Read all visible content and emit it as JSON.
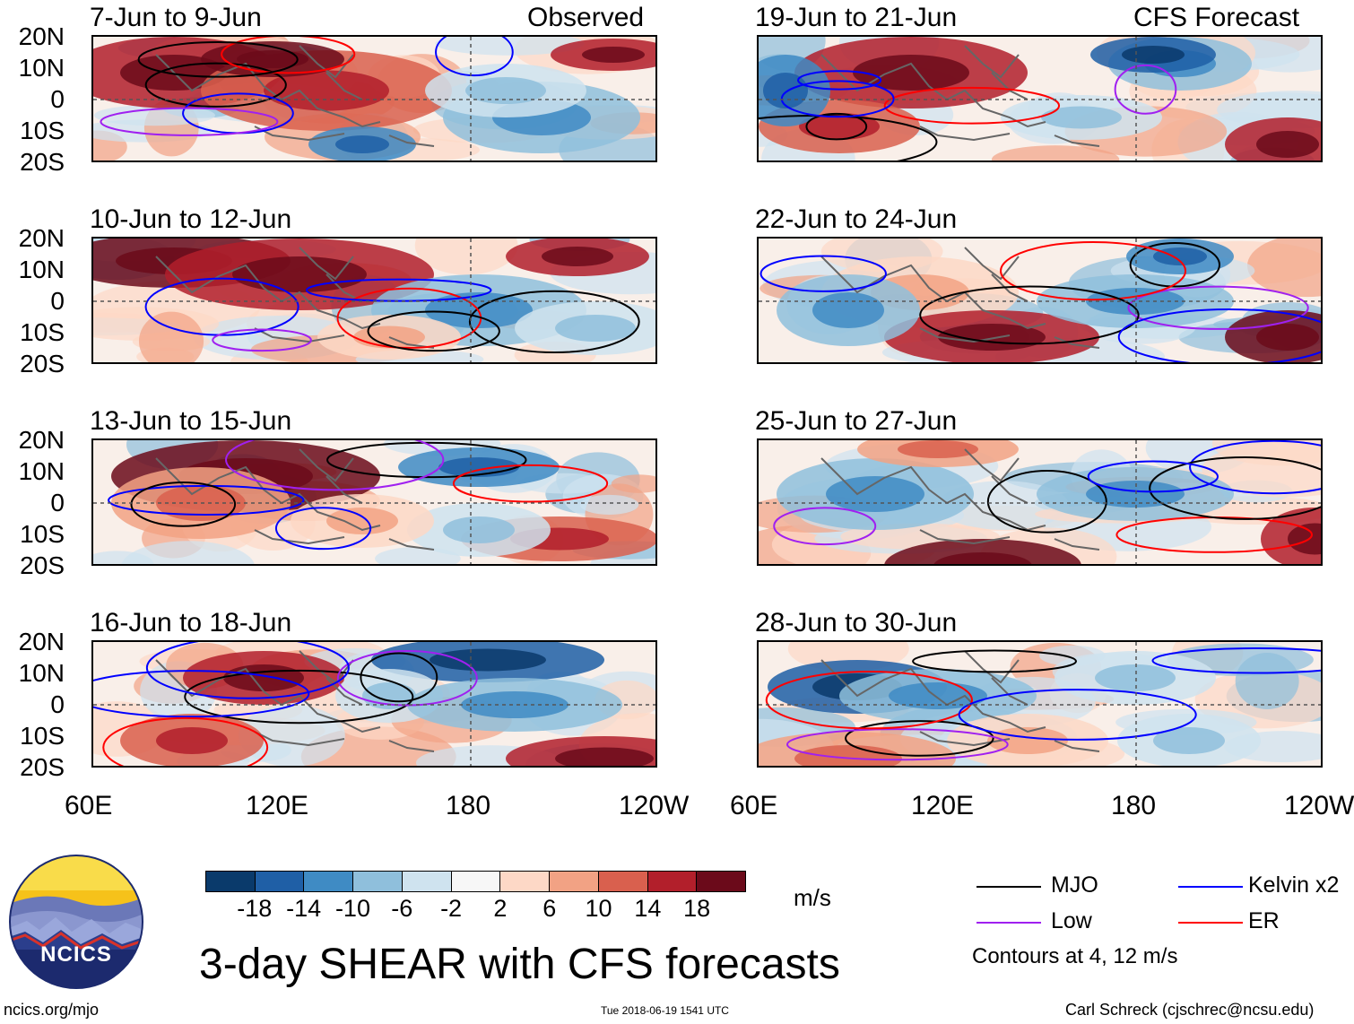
{
  "figure": {
    "title": "3-day SHEAR with CFS forecasts",
    "observed_label": "Observed",
    "forecast_label": "CFS Forecast",
    "site": "ncics.org/mjo",
    "timestamp": "Tue 2018-06-19 1541 UTC",
    "author": "Carl Schreck (cjschrec@ncsu.edu)",
    "logo_text": "NCICS"
  },
  "axes": {
    "y_ticks": [
      "20N",
      "10N",
      "0",
      "10S",
      "20S"
    ],
    "x_ticks": [
      "60E",
      "120E",
      "180",
      "120W"
    ],
    "lat_range": [
      -20,
      20
    ],
    "lon_range": [
      60,
      240
    ]
  },
  "panels": {
    "observed": [
      {
        "date_range": "7-Jun to 9-Jun"
      },
      {
        "date_range": "10-Jun to 12-Jun"
      },
      {
        "date_range": "13-Jun to 15-Jun"
      },
      {
        "date_range": "16-Jun to 18-Jun"
      }
    ],
    "forecast": [
      {
        "date_range": "19-Jun to 21-Jun"
      },
      {
        "date_range": "22-Jun to 24-Jun"
      },
      {
        "date_range": "25-Jun to 27-Jun"
      },
      {
        "date_range": "28-Jun to 30-Jun"
      }
    ]
  },
  "colorbar": {
    "labels": [
      "-18",
      "-14",
      "-10",
      "-6",
      "-2",
      "2",
      "6",
      "10",
      "14",
      "18"
    ],
    "units": "m/s",
    "colors": [
      "#0a3a6b",
      "#1f5fa6",
      "#3f8bc4",
      "#8fbfdc",
      "#cfe3ef",
      "#f7f7f7",
      "#fdd8c6",
      "#f2a284",
      "#d9604e",
      "#b21f2b",
      "#6b0a1a"
    ]
  },
  "legend": {
    "items": [
      {
        "label": "MJO",
        "color": "#000000"
      },
      {
        "label": "Kelvin x2",
        "color": "#0000ff"
      },
      {
        "label": "Low",
        "color": "#a020f0"
      },
      {
        "label": "ER",
        "color": "#ff0000"
      }
    ],
    "note": "Contours at 4, 12 m/s"
  }
}
